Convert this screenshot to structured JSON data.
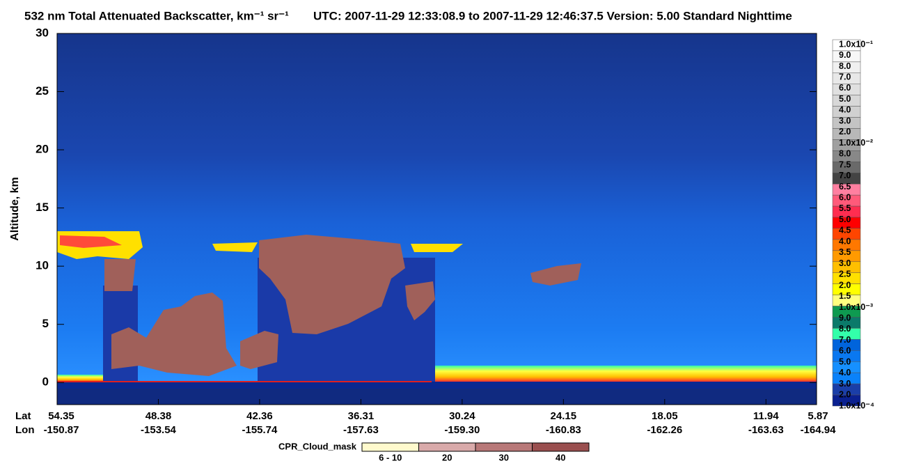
{
  "chart_data": {
    "type": "heatmap",
    "title": "532 nm Total Attenuated Backscatter, km⁻¹ sr⁻¹",
    "subtitle": "UTC:  2007-11-29 12:33:08.9  to  2007-11-29 12:46:37.5    Version: 5.00  Standard  Nighttime",
    "y_label": "Altitude, km",
    "ylim": [
      -1.9,
      30
    ],
    "yticks": [
      0,
      5,
      10,
      15,
      20,
      25,
      30
    ],
    "x_row_labels": [
      "Lat",
      "Lon"
    ],
    "x_ticks": [
      {
        "lat": "54.35",
        "lon": "-150.87"
      },
      {
        "lat": "48.38",
        "lon": "-153.54"
      },
      {
        "lat": "42.36",
        "lon": "-155.74"
      },
      {
        "lat": "36.31",
        "lon": "-157.63"
      },
      {
        "lat": "30.24",
        "lon": "-159.30"
      },
      {
        "lat": "24.15",
        "lon": "-160.83"
      },
      {
        "lat": "18.05",
        "lon": "-162.26"
      },
      {
        "lat": "11.94",
        "lon": "-163.63"
      },
      {
        "lat": "5.87",
        "lon": "-164.94"
      }
    ],
    "colorbar": {
      "labels": [
        "1.0x10⁻¹",
        "9.0",
        "8.0",
        "7.0",
        "6.0",
        "5.0",
        "4.0",
        "3.0",
        "2.0",
        "1.0x10⁻²",
        "8.0",
        "7.5",
        "7.0",
        "6.5",
        "6.0",
        "5.5",
        "5.0",
        "4.5",
        "4.0",
        "3.5",
        "3.0",
        "2.5",
        "2.0",
        "1.5",
        "1.0x10⁻³",
        "9.0",
        "8.0",
        "7.0",
        "6.0",
        "5.0",
        "4.0",
        "3.0",
        "2.0",
        "1.0x10⁻⁴"
      ],
      "colors": [
        "#ffffff",
        "#f7f7f7",
        "#f0f0f0",
        "#e8e8e8",
        "#e0e0e0",
        "#d8d8d8",
        "#d0d0d0",
        "#c4c4c4",
        "#b8b8b8",
        "#a0a0a0",
        "#888888",
        "#6a6a6a",
        "#444444",
        "#ff7fa0",
        "#ff5a7a",
        "#ff2d50",
        "#ff0000",
        "#ff4500",
        "#ff7800",
        "#ff9a00",
        "#ffbf00",
        "#ffe000",
        "#ffff00",
        "#ffff80",
        "#0e9a50",
        "#0b7a6a",
        "#33ffaa",
        "#0064dc",
        "#0a78f0",
        "#1690ff",
        "#0a82fa",
        "#1a3ea8",
        "#0a2090"
      ]
    },
    "cloud_mask": {
      "title": "CPR_Cloud_mask",
      "labels": [
        "6 - 10",
        "20",
        "30",
        "40"
      ],
      "colors": [
        "#fffacd",
        "#d9aaaa",
        "#b87878",
        "#9a4f4f"
      ]
    }
  }
}
